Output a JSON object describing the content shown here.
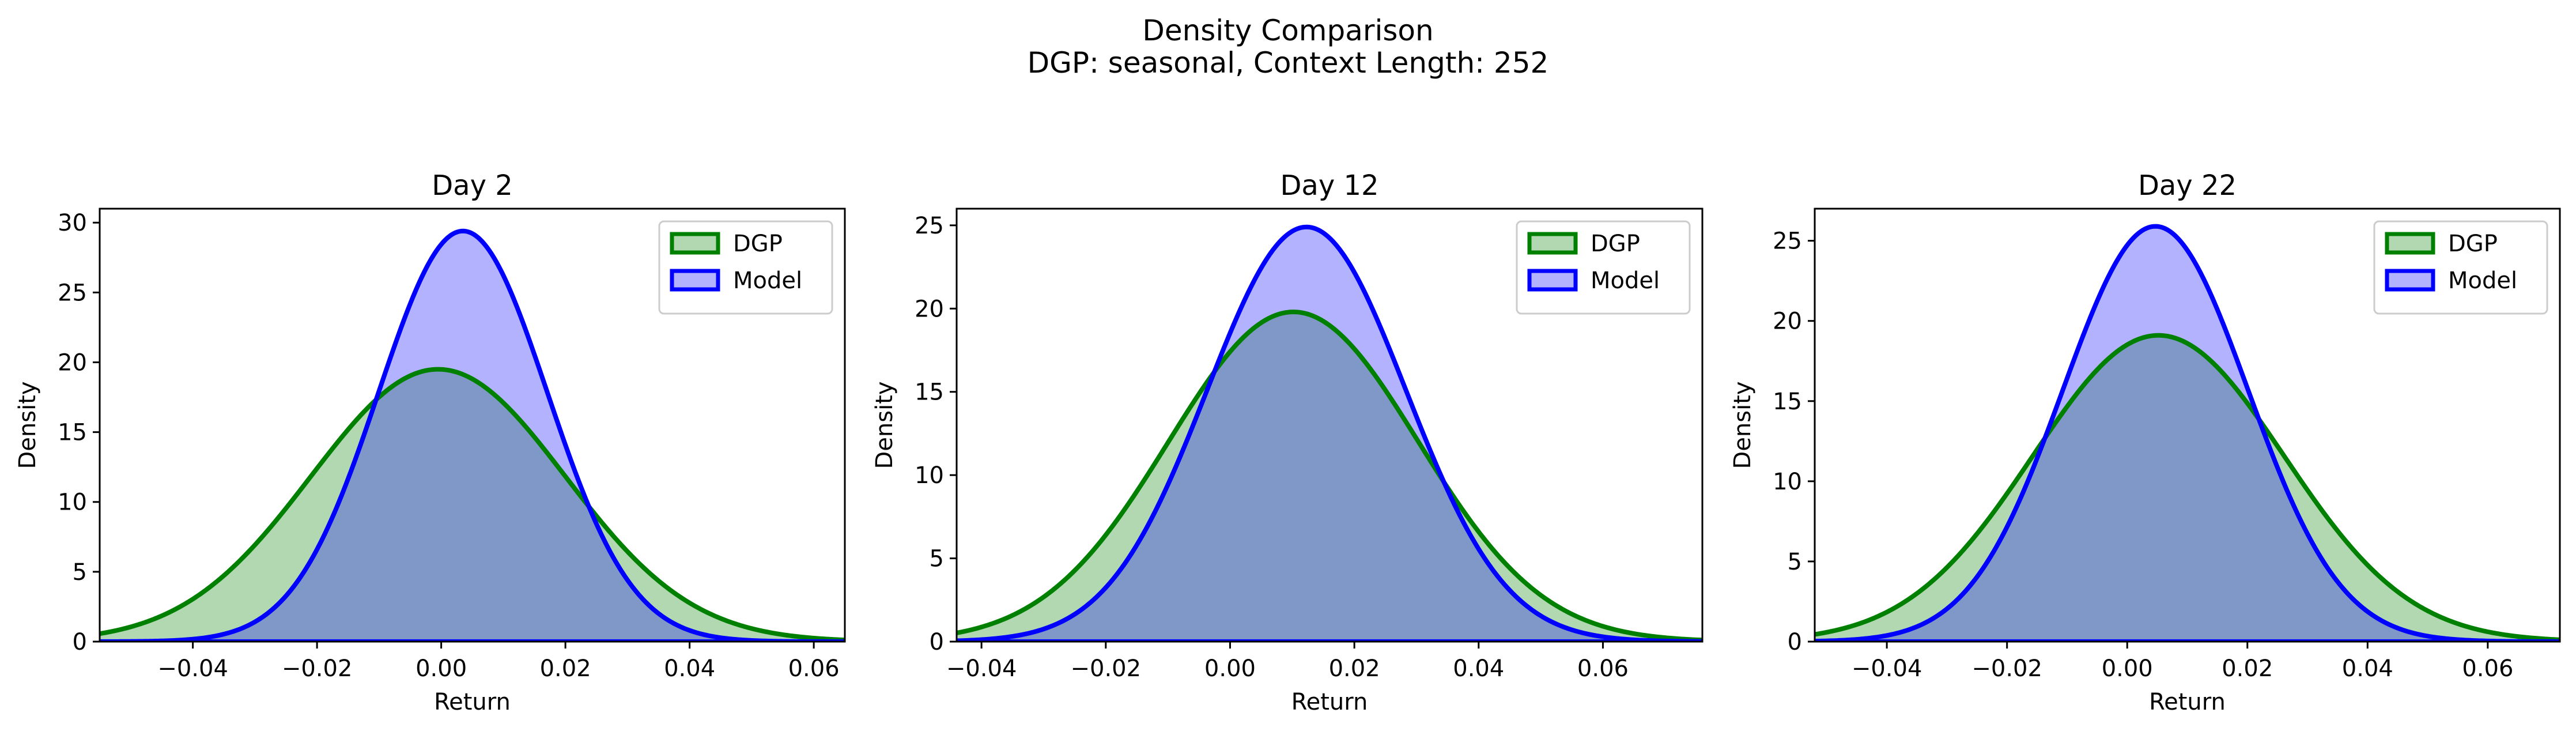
{
  "figure": {
    "title": "Density Comparison",
    "subtitle": "DGP: seasonal, Context Length: 252"
  },
  "colors": {
    "dgp_line": "#008000",
    "dgp_fill": "#b2d8b2",
    "model_line": "#0000ff",
    "model_fill": "#b2b2ff",
    "overlap_fill": "#7f98c8"
  },
  "chart_data": [
    {
      "type": "area",
      "title": "Day 2",
      "xlabel": "Return",
      "ylabel": "Density",
      "xlim": [
        -0.055,
        0.065
      ],
      "ylim": [
        0,
        31
      ],
      "xticks": [
        -0.04,
        -0.02,
        0.0,
        0.02,
        0.04,
        0.06
      ],
      "xtick_labels": [
        "−0.04",
        "−0.02",
        "0.00",
        "0.02",
        "0.04",
        "0.06"
      ],
      "yticks": [
        0,
        5,
        10,
        15,
        20,
        25,
        30
      ],
      "ytick_labels": [
        "0",
        "5",
        "10",
        "15",
        "20",
        "25",
        "30"
      ],
      "legend": "top-right",
      "series": [
        {
          "name": "DGP",
          "distribution": "normal",
          "mean": -0.0005,
          "std": 0.0205,
          "peak_density": 19.5
        },
        {
          "name": "Model",
          "distribution": "normal",
          "mean": 0.0035,
          "std": 0.0136,
          "peak_density": 29.4
        }
      ]
    },
    {
      "type": "area",
      "title": "Day 12",
      "xlabel": "Return",
      "ylabel": "Density",
      "xlim": [
        -0.044,
        0.076
      ],
      "ylim": [
        0,
        26
      ],
      "xticks": [
        -0.04,
        -0.02,
        0.0,
        0.02,
        0.04,
        0.06
      ],
      "xtick_labels": [
        "−0.04",
        "−0.02",
        "0.00",
        "0.02",
        "0.04",
        "0.06"
      ],
      "yticks": [
        0,
        5,
        10,
        15,
        20,
        25
      ],
      "ytick_labels": [
        "0",
        "5",
        "10",
        "15",
        "20",
        "25"
      ],
      "legend": "top-right",
      "series": [
        {
          "name": "DGP",
          "distribution": "normal",
          "mean": 0.0102,
          "std": 0.0201,
          "peak_density": 19.8
        },
        {
          "name": "Model",
          "distribution": "normal",
          "mean": 0.0123,
          "std": 0.016,
          "peak_density": 24.9
        }
      ]
    },
    {
      "type": "area",
      "title": "Day 22",
      "xlabel": "Return",
      "ylabel": "Density",
      "xlim": [
        -0.052,
        0.072
      ],
      "ylim": [
        0,
        27
      ],
      "xticks": [
        -0.04,
        -0.02,
        0.0,
        0.02,
        0.04,
        0.06
      ],
      "xtick_labels": [
        "−0.04",
        "−0.02",
        "0.00",
        "0.02",
        "0.04",
        "0.06"
      ],
      "yticks": [
        0,
        5,
        10,
        15,
        20,
        25
      ],
      "ytick_labels": [
        "0",
        "5",
        "10",
        "15",
        "20",
        "25"
      ],
      "legend": "top-right",
      "series": [
        {
          "name": "DGP",
          "distribution": "normal",
          "mean": 0.0052,
          "std": 0.0209,
          "peak_density": 19.1
        },
        {
          "name": "Model",
          "distribution": "normal",
          "mean": 0.0047,
          "std": 0.0154,
          "peak_density": 25.9
        }
      ]
    }
  ]
}
